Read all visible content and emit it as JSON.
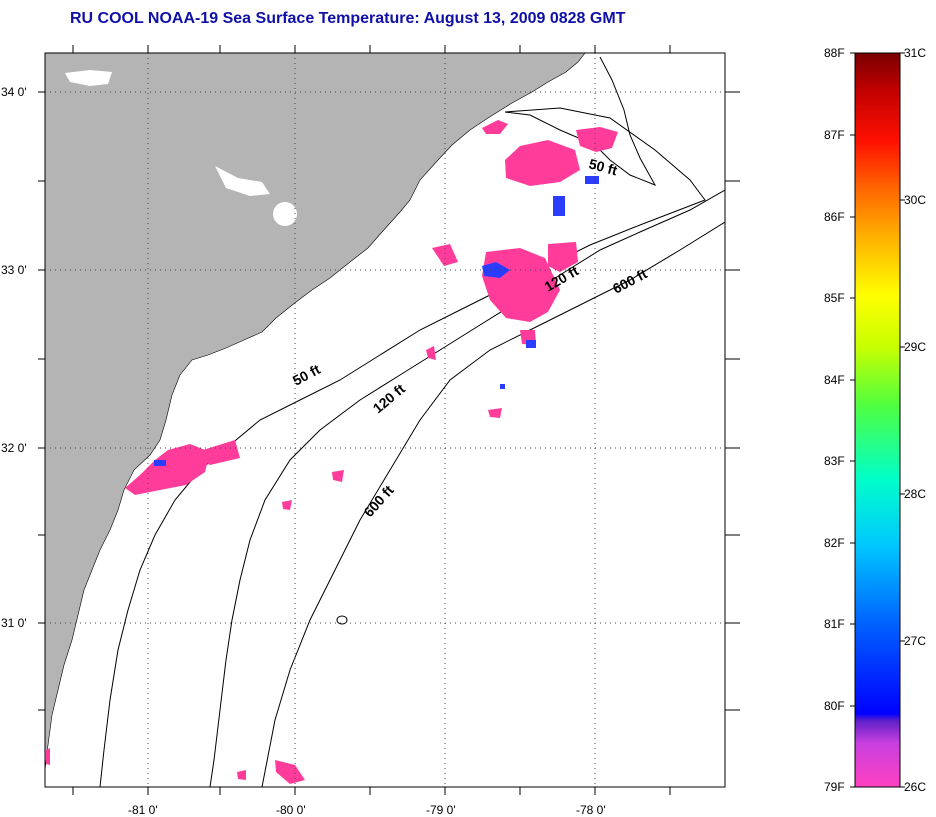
{
  "title": "RU COOL  NOAA-19  Sea Surface Temperature:  August 13, 2009 0828 GMT",
  "latitude_labels": [
    "34 0'",
    "33 0'",
    "32 0'",
    "31 0'"
  ],
  "longitude_labels": [
    "-81 0'",
    "-80 0'",
    "-79 0'",
    "-78 0'"
  ],
  "depth_contours": [
    "50 ft",
    "120 ft",
    "600 ft"
  ],
  "depth_labels": {
    "north_50": "50 ft",
    "north_120": "120 ft",
    "north_600": "600 ft",
    "south_50": "50 ft",
    "south_120": "120 ft",
    "south_600": "600 ft"
  },
  "colorbar": {
    "fahrenheit": [
      "88F",
      "87F",
      "86F",
      "85F",
      "84F",
      "83F",
      "82F",
      "81F",
      "80F",
      "79F"
    ],
    "celsius": [
      "31C",
      "30C",
      "29C",
      "28C",
      "27C",
      "26C"
    ]
  },
  "colors": {
    "land": "#b4b4b4",
    "sst_warm_patch": "#ff3c9a",
    "sst_cool_patch": "#2a3cff",
    "title": "#1010a8"
  }
}
